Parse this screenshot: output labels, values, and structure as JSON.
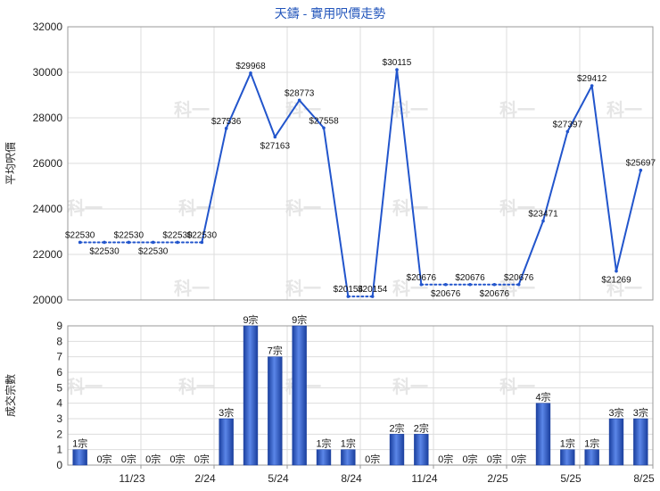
{
  "chart_data": [
    {
      "type": "line",
      "title": "天鑄 - 實用呎價走勢",
      "ylabel": "平均呎價",
      "ylim": [
        20000,
        32000
      ],
      "yticks": [
        20000,
        22000,
        24000,
        26000,
        28000,
        30000,
        32000
      ],
      "label_prefix": "$",
      "months": 24,
      "values": [
        22530,
        22530,
        22530,
        22530,
        22530,
        22530,
        27536,
        29968,
        27163,
        28773,
        27558,
        20154,
        20154,
        30115,
        20676,
        20676,
        20676,
        20676,
        20676,
        23471,
        27397,
        29412,
        21269,
        25697
      ],
      "segment_styles": [
        "dotted",
        "dotted",
        "dotted",
        "dotted",
        "dotted",
        "solid",
        "solid",
        "solid",
        "solid",
        "solid",
        "solid",
        "dotted",
        "solid",
        "solid",
        "dotted",
        "dotted",
        "dotted",
        "dotted",
        "solid",
        "solid",
        "solid",
        "solid",
        "solid"
      ],
      "line_color": "#2255cc",
      "grid": true
    },
    {
      "type": "bar",
      "ylabel": "成交宗數",
      "ylim": [
        0,
        9
      ],
      "yticks": [
        0,
        1,
        2,
        3,
        4,
        5,
        6,
        7,
        8,
        9
      ],
      "label_suffix": "宗",
      "values": [
        1,
        0,
        0,
        0,
        0,
        0,
        3,
        9,
        7,
        9,
        1,
        1,
        0,
        2,
        2,
        0,
        0,
        0,
        0,
        4,
        1,
        1,
        3,
        3
      ],
      "xticks": [
        "11/23",
        "2/24",
        "5/24",
        "8/24",
        "11/24",
        "2/25",
        "5/25",
        "8/25"
      ],
      "bar_color": "#2a56c8",
      "grid": true
    }
  ],
  "watermark": "科一"
}
